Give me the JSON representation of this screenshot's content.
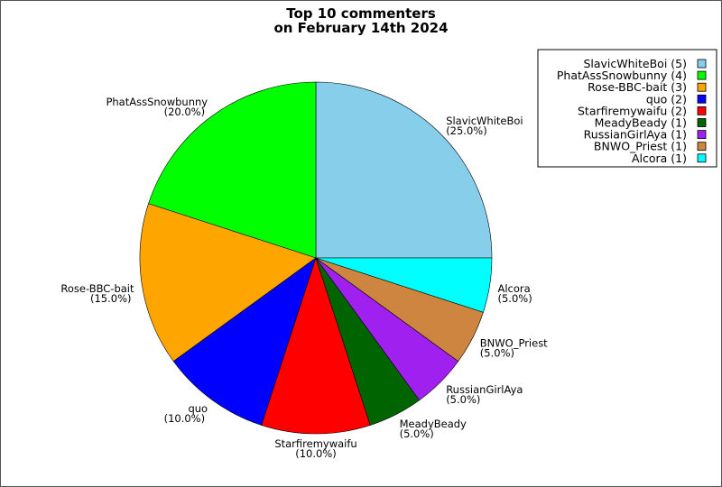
{
  "chart_data": {
    "type": "pie",
    "title": [
      "Top 10 commenters",
      "on February 14th 2024"
    ],
    "slices": [
      {
        "label": "SlavicWhiteBoi",
        "count": 5,
        "percent": "25.0%",
        "color": "#87ceeb"
      },
      {
        "label": "PhatAssSnowbunny",
        "count": 4,
        "percent": "20.0%",
        "color": "#00ff00"
      },
      {
        "label": "Rose-BBC-bait",
        "count": 3,
        "percent": "15.0%",
        "color": "#ffa500"
      },
      {
        "label": "quo",
        "count": 2,
        "percent": "10.0%",
        "color": "#0000ff"
      },
      {
        "label": "Starfiremywaifu",
        "count": 2,
        "percent": "10.0%",
        "color": "#ff0000"
      },
      {
        "label": "MeadyBeady",
        "count": 1,
        "percent": "5.0%",
        "color": "#006400"
      },
      {
        "label": "RussianGirlAya",
        "count": 1,
        "percent": "5.0%",
        "color": "#a020f0"
      },
      {
        "label": "BNWO_Priest",
        "count": 1,
        "percent": "5.0%",
        "color": "#cd853f"
      },
      {
        "label": "Alcora",
        "count": 1,
        "percent": "5.0%",
        "color": "#00ffff"
      }
    ],
    "legend": {
      "placement": "top-right",
      "entries": [
        "SlavicWhiteBoi (5)",
        "PhatAssSnowbunny (4)",
        "Rose-BBC-bait (3)",
        "quo (2)",
        "Starfiremywaifu (2)",
        "MeadyBeady (1)",
        "RussianGirlAya (1)",
        "BNWO_Priest (1)",
        "Alcora (1)"
      ]
    }
  }
}
